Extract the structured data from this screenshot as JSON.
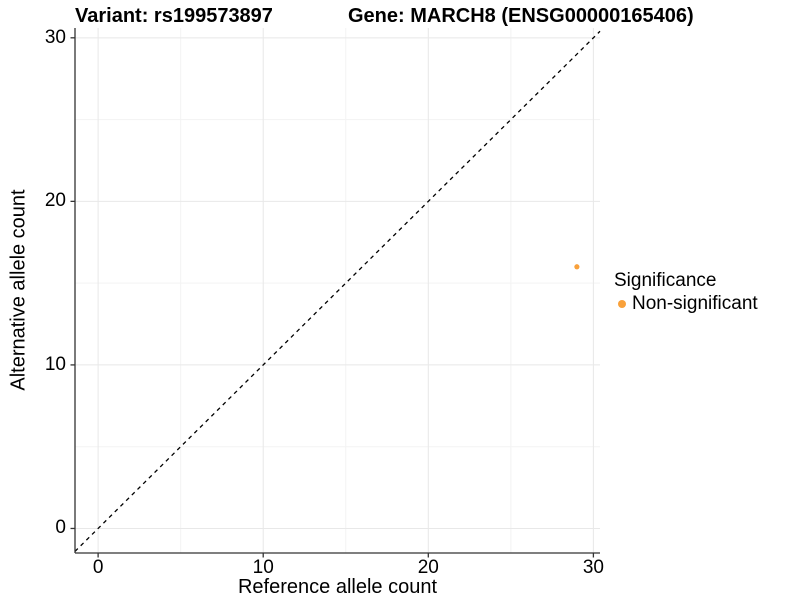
{
  "titles": {
    "left": "Variant: rs199573897",
    "right": "Gene: MARCH8 (ENSG00000165406)"
  },
  "chart_data": {
    "type": "scatter",
    "title": "Variant: rs199573897    Gene: MARCH8 (ENSG00000165406)",
    "xlabel": "Reference allele count",
    "ylabel": "Alternative allele count",
    "xlim": [
      -1.4,
      30.4
    ],
    "ylim": [
      -1.5,
      30.6
    ],
    "x_ticks": [
      0,
      10,
      20,
      30
    ],
    "y_ticks": [
      0,
      10,
      20,
      30
    ],
    "x_minor_ticks": [
      5,
      15,
      25
    ],
    "y_minor_ticks": [
      5,
      15,
      25
    ],
    "grid": "on",
    "identity_line": {
      "style": "dashed",
      "color": "#000000",
      "from": [
        -1.4,
        -1.4
      ],
      "to": [
        30.4,
        30.4
      ]
    },
    "series": [
      {
        "name": "Non-significant",
        "color": "#F9A13B",
        "points": [
          [
            29,
            16
          ]
        ]
      }
    ],
    "legend": {
      "title": "Significance",
      "position": "right",
      "entries": [
        {
          "label": "Non-significant",
          "color": "#F9A13B"
        }
      ]
    },
    "colors": {
      "grid_major": "#E8E8E8",
      "grid_minor": "#F3F3F3",
      "axis": "#333333",
      "background": "#FFFFFF"
    }
  }
}
